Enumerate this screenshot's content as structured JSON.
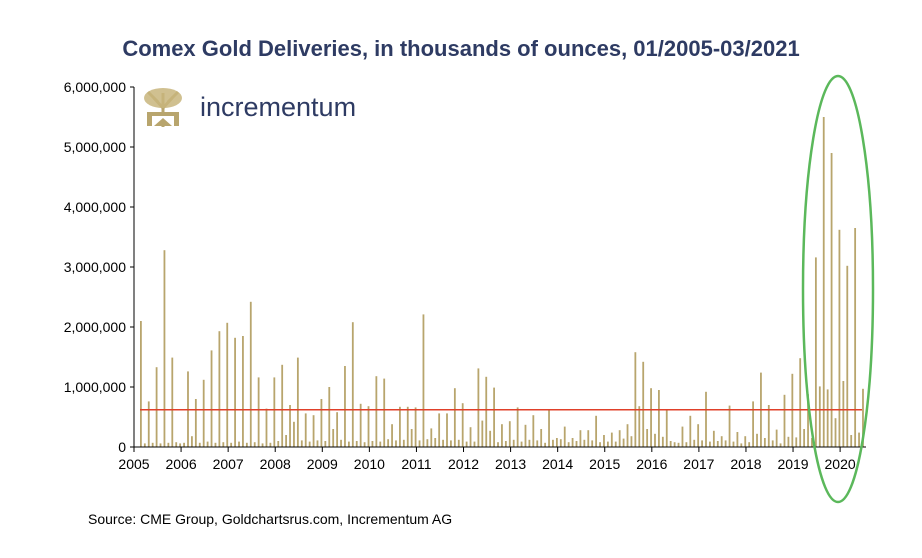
{
  "chart_data": {
    "type": "bar",
    "title": "Comex Gold Deliveries, in thousands of ounces, 01/2005-03/2021",
    "source": "Source: CME Group, Goldchartsrus.com, Incrementum AG",
    "logo": "incrementum",
    "ylim": [
      0,
      6000000
    ],
    "xlim": [
      2005,
      2020.55
    ],
    "y_ticks": [
      "0",
      "1,000,000",
      "2,000,000",
      "3,000,000",
      "4,000,000",
      "5,000,000",
      "6,000,000"
    ],
    "x_ticks": [
      "2005",
      "2006",
      "2007",
      "2008",
      "2009",
      "2010",
      "2011",
      "2012",
      "2013",
      "2014",
      "2015",
      "2016",
      "2017",
      "2018",
      "2019",
      "2020"
    ],
    "average_line": 620000,
    "colors": {
      "bar": "#b8a56d",
      "average": "#e0402a",
      "highlight": "#5bb85b",
      "title": "#2e3b63"
    },
    "values": [
      2100000,
      60000,
      760000,
      70000,
      1330000,
      60000,
      3280000,
      70000,
      1490000,
      80000,
      60000,
      70000,
      1260000,
      180000,
      800000,
      70000,
      1120000,
      90000,
      1610000,
      70000,
      1930000,
      80000,
      2070000,
      70000,
      1820000,
      90000,
      1850000,
      70000,
      2420000,
      80000,
      1160000,
      60000,
      640000,
      70000,
      1160000,
      100000,
      1370000,
      200000,
      700000,
      420000,
      1490000,
      110000,
      560000,
      90000,
      530000,
      110000,
      800000,
      100000,
      1000000,
      300000,
      580000,
      120000,
      1350000,
      90000,
      2080000,
      100000,
      720000,
      80000,
      680000,
      100000,
      1180000,
      90000,
      1140000,
      130000,
      380000,
      110000,
      670000,
      120000,
      670000,
      300000,
      660000,
      110000,
      2210000,
      130000,
      310000,
      150000,
      560000,
      120000,
      560000,
      110000,
      980000,
      120000,
      730000,
      90000,
      330000,
      90000,
      1310000,
      440000,
      1170000,
      270000,
      990000,
      80000,
      380000,
      100000,
      430000,
      120000,
      660000,
      90000,
      370000,
      120000,
      530000,
      110000,
      300000,
      70000,
      620000,
      120000,
      150000,
      130000,
      340000,
      80000,
      150000,
      100000,
      280000,
      120000,
      280000,
      110000,
      520000,
      80000,
      200000,
      90000,
      240000,
      90000,
      280000,
      140000,
      380000,
      180000,
      1580000,
      680000,
      1420000,
      300000,
      980000,
      220000,
      950000,
      170000,
      610000,
      100000,
      80000,
      70000,
      340000,
      80000,
      520000,
      120000,
      380000,
      110000,
      920000,
      90000,
      270000,
      100000,
      180000,
      110000,
      690000,
      90000,
      250000,
      60000,
      180000,
      80000,
      760000,
      220000,
      1240000,
      150000,
      700000,
      110000,
      290000,
      60000,
      870000,
      170000,
      1220000,
      160000,
      1480000,
      300000,
      880000,
      150000,
      3160000,
      1010000,
      5500000,
      960000,
      4900000,
      480000,
      3620000,
      1100000,
      3020000,
      200000,
      3650000,
      240000,
      970000
    ]
  }
}
